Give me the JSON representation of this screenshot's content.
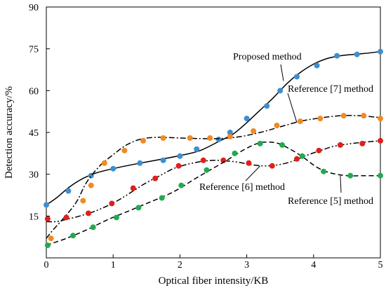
{
  "chart_data": {
    "type": "line",
    "xlabel": "Optical fiber intensity/KB",
    "ylabel": "Detection accuracy/%",
    "xlim": [
      0,
      5
    ],
    "ylim": [
      0,
      90
    ],
    "xticks": [
      0,
      1,
      2,
      3,
      4,
      5
    ],
    "yticks": [
      15,
      30,
      45,
      60,
      75,
      90
    ],
    "x_tick_labels": [
      "0",
      "1",
      "2",
      "3",
      "4",
      "5"
    ],
    "y_tick_labels": [
      "15",
      "30",
      "45",
      "60",
      "75",
      "90"
    ],
    "grid": false,
    "legend": "none (series labelled by annotations with leader lines)",
    "series": [
      {
        "name": "Proposed method",
        "line_style": "solid",
        "marker_color": "#3d8fd1",
        "line": [
          [
            0,
            19
          ],
          [
            0.15,
            21.5
          ],
          [
            0.35,
            25.5
          ],
          [
            0.55,
            28.5
          ],
          [
            0.75,
            30.5
          ],
          [
            1,
            32
          ],
          [
            1.3,
            33.5
          ],
          [
            1.7,
            35.3
          ],
          [
            2,
            36.7
          ],
          [
            2.3,
            38.5
          ],
          [
            2.6,
            42
          ],
          [
            2.8,
            44.5
          ],
          [
            3,
            48.5
          ],
          [
            3.2,
            53
          ],
          [
            3.4,
            57.5
          ],
          [
            3.6,
            62.5
          ],
          [
            3.8,
            66.5
          ],
          [
            4,
            69.5
          ],
          [
            4.2,
            71.5
          ],
          [
            4.4,
            72.5
          ],
          [
            4.6,
            73
          ],
          [
            4.75,
            73.3
          ],
          [
            5,
            74
          ]
        ],
        "points": [
          [
            0,
            19
          ],
          [
            0.33,
            24
          ],
          [
            0.67,
            29.5
          ],
          [
            1,
            32
          ],
          [
            1.4,
            34
          ],
          [
            1.75,
            35
          ],
          [
            2,
            36.5
          ],
          [
            2.25,
            39
          ],
          [
            2.58,
            42.5
          ],
          [
            2.75,
            45
          ],
          [
            3,
            50
          ],
          [
            3.3,
            54.5
          ],
          [
            3.5,
            60
          ],
          [
            3.75,
            65
          ],
          [
            4.05,
            69
          ],
          [
            4.35,
            72.5
          ],
          [
            4.65,
            73
          ],
          [
            5,
            74
          ]
        ]
      },
      {
        "name": "Reference [7] method",
        "line_style": "dash-dot",
        "marker_color": "#f08a24",
        "line": [
          [
            0,
            7
          ],
          [
            0.1,
            10
          ],
          [
            0.25,
            14
          ],
          [
            0.45,
            20
          ],
          [
            0.6,
            27
          ],
          [
            0.8,
            33
          ],
          [
            1,
            37
          ],
          [
            1.2,
            40.5
          ],
          [
            1.4,
            42.5
          ],
          [
            1.6,
            43.2
          ],
          [
            1.8,
            43.2
          ],
          [
            2,
            43
          ],
          [
            2.3,
            42.8
          ],
          [
            2.6,
            42.8
          ],
          [
            2.9,
            43.5
          ],
          [
            3.2,
            45
          ],
          [
            3.5,
            47
          ],
          [
            3.8,
            49
          ],
          [
            4.1,
            50.2
          ],
          [
            4.4,
            51
          ],
          [
            4.7,
            51
          ],
          [
            5,
            50.3
          ]
        ],
        "points": [
          [
            0.07,
            7
          ],
          [
            0.55,
            20.5
          ],
          [
            0.67,
            26
          ],
          [
            0.87,
            34
          ],
          [
            1.17,
            38.5
          ],
          [
            1.45,
            42
          ],
          [
            1.75,
            43
          ],
          [
            2.15,
            43
          ],
          [
            2.45,
            43
          ],
          [
            2.75,
            43.5
          ],
          [
            3.1,
            45.5
          ],
          [
            3.45,
            47.5
          ],
          [
            3.8,
            49
          ],
          [
            4.1,
            50
          ],
          [
            4.45,
            51
          ],
          [
            4.75,
            51
          ],
          [
            5,
            50
          ]
        ]
      },
      {
        "name": "Reference [6] method",
        "line_style": "dash-dot-dot",
        "marker_color": "#e0201b",
        "line": [
          [
            0,
            13
          ],
          [
            0.15,
            13
          ],
          [
            0.3,
            13.8
          ],
          [
            0.5,
            15
          ],
          [
            0.7,
            16.5
          ],
          [
            0.9,
            18.5
          ],
          [
            1.1,
            21
          ],
          [
            1.3,
            24
          ],
          [
            1.5,
            27
          ],
          [
            1.7,
            29.5
          ],
          [
            1.9,
            32
          ],
          [
            2.1,
            33.5
          ],
          [
            2.3,
            34.5
          ],
          [
            2.5,
            35
          ],
          [
            2.7,
            34.8
          ],
          [
            2.9,
            34.2
          ],
          [
            3.1,
            33.3
          ],
          [
            3.3,
            33
          ],
          [
            3.5,
            33.5
          ],
          [
            3.7,
            34.8
          ],
          [
            3.9,
            36.8
          ],
          [
            4.1,
            38.5
          ],
          [
            4.3,
            40
          ],
          [
            4.5,
            40.8
          ],
          [
            4.75,
            41.5
          ],
          [
            5,
            42
          ]
        ],
        "points": [
          [
            0.02,
            14
          ],
          [
            0.3,
            14.5
          ],
          [
            0.63,
            16
          ],
          [
            0.98,
            19.5
          ],
          [
            1.3,
            25
          ],
          [
            1.63,
            28.5
          ],
          [
            1.98,
            33
          ],
          [
            2.35,
            35
          ],
          [
            2.65,
            35
          ],
          [
            3.03,
            34
          ],
          [
            3.38,
            33
          ],
          [
            3.75,
            35.5
          ],
          [
            4.08,
            38.5
          ],
          [
            4.4,
            40.5
          ],
          [
            4.73,
            41
          ],
          [
            5,
            42
          ]
        ]
      },
      {
        "name": "Reference [5] method",
        "line_style": "dashed",
        "marker_color": "#1fab4e",
        "line": [
          [
            0,
            4.5
          ],
          [
            0.3,
            7
          ],
          [
            0.6,
            10
          ],
          [
            0.9,
            13.5
          ],
          [
            1.2,
            16.5
          ],
          [
            1.5,
            19.5
          ],
          [
            1.8,
            22.5
          ],
          [
            2,
            25
          ],
          [
            2.2,
            28
          ],
          [
            2.45,
            31.5
          ],
          [
            2.7,
            35
          ],
          [
            2.9,
            38
          ],
          [
            3.1,
            40.5
          ],
          [
            3.25,
            41.5
          ],
          [
            3.45,
            41.2
          ],
          [
            3.65,
            39
          ],
          [
            3.85,
            36
          ],
          [
            4.05,
            32.5
          ],
          [
            4.25,
            30.5
          ],
          [
            4.5,
            29.5
          ],
          [
            4.75,
            29.5
          ],
          [
            5,
            29.5
          ]
        ],
        "points": [
          [
            0.02,
            4.5
          ],
          [
            0.4,
            8
          ],
          [
            0.7,
            11
          ],
          [
            1.05,
            14.5
          ],
          [
            1.38,
            18
          ],
          [
            1.73,
            21.5
          ],
          [
            2.02,
            26
          ],
          [
            2.4,
            31.5
          ],
          [
            2.82,
            37.5
          ],
          [
            3.2,
            41
          ],
          [
            3.53,
            40.5
          ],
          [
            3.83,
            36.5
          ],
          [
            4.15,
            31
          ],
          [
            4.55,
            29.5
          ],
          [
            5,
            29.5
          ]
        ]
      }
    ],
    "annotations": [
      {
        "text": "Proposed method",
        "series": "Proposed method",
        "x": 3.55,
        "y": 63.5
      },
      {
        "text": "Reference [7] method",
        "series": "Reference [7] method",
        "x": 3.75,
        "y": 48.5
      },
      {
        "text": "Reference [6] method",
        "series": "Reference [6] method",
        "x": 3.2,
        "y": 33
      },
      {
        "text": "Reference [5] method",
        "series": "Reference [5] method",
        "x": 4.4,
        "y": 29.5
      }
    ]
  }
}
